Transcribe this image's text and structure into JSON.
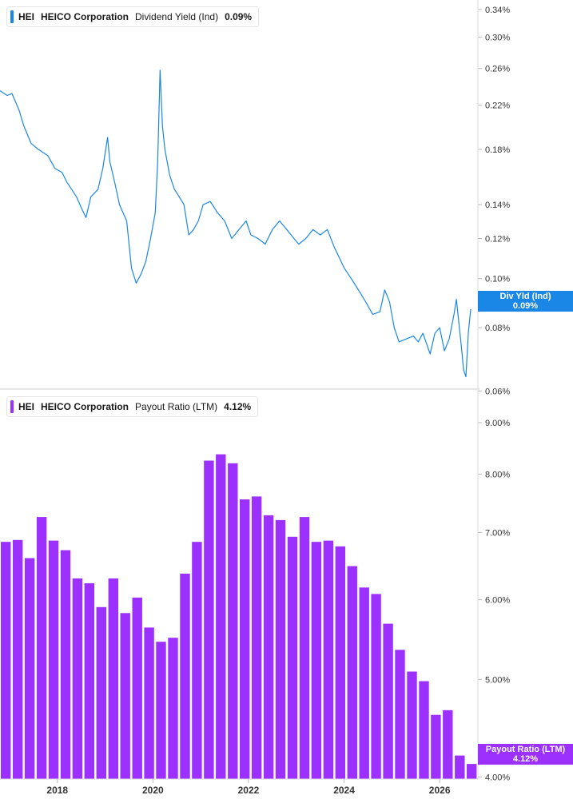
{
  "colors": {
    "div_yield": "#1a87e6",
    "payout": "#9b30ff",
    "axis_text": "#333333",
    "separator": "#cccccc"
  },
  "panels": {
    "top": {
      "legend": {
        "ticker": "HEI",
        "company": "HEICO Corporation",
        "metric": "Dividend Yield (Ind)",
        "value": "0.09%"
      },
      "tag": {
        "label": "Div Yld (Ind)",
        "value": "0.09%"
      }
    },
    "bottom": {
      "legend": {
        "ticker": "HEI",
        "company": "HEICO Corporation",
        "metric": "Payout Ratio (LTM)",
        "value": "4.12%"
      },
      "tag": {
        "label": "Payout Ratio (LTM)",
        "value": "4.12%"
      }
    }
  },
  "chart_data": [
    {
      "type": "line",
      "name": "Dividend Yield (Ind)",
      "y_scale": "log",
      "unit": "%",
      "xlim": [
        2016.8,
        2026.8
      ],
      "ylim": [
        0.0605,
        0.355
      ],
      "y_ticks": [
        "0.06%",
        "0.08%",
        "0.10%",
        "0.12%",
        "0.14%",
        "0.18%",
        "0.22%",
        "0.26%",
        "0.30%",
        "0.34%"
      ],
      "x": [
        2016.8,
        2016.95,
        2017.05,
        2017.2,
        2017.3,
        2017.45,
        2017.6,
        2017.8,
        2017.95,
        2018.1,
        2018.2,
        2018.3,
        2018.4,
        2018.5,
        2018.6,
        2018.7,
        2018.85,
        2018.95,
        2019.05,
        2019.1,
        2019.2,
        2019.3,
        2019.45,
        2019.55,
        2019.65,
        2019.75,
        2019.85,
        2019.95,
        2020.05,
        2020.1,
        2020.15,
        2020.2,
        2020.25,
        2020.35,
        2020.45,
        2020.55,
        2020.65,
        2020.75,
        2020.85,
        2020.95,
        2021.05,
        2021.2,
        2021.35,
        2021.5,
        2021.65,
        2021.8,
        2021.95,
        2022.05,
        2022.2,
        2022.35,
        2022.5,
        2022.65,
        2022.8,
        2022.95,
        2023.05,
        2023.2,
        2023.35,
        2023.5,
        2023.65,
        2023.8,
        2023.9,
        2024.0,
        2024.15,
        2024.3,
        2024.45,
        2024.6,
        2024.75,
        2024.85,
        2024.95,
        2025.05,
        2025.15,
        2025.3,
        2025.45,
        2025.55,
        2025.65,
        2025.8,
        2025.9,
        2026.0,
        2026.1,
        2026.2,
        2026.3,
        2026.35,
        2026.4,
        2026.45,
        2026.5,
        2026.55,
        2026.6,
        2026.65
      ],
      "y": [
        0.235,
        0.23,
        0.232,
        0.215,
        0.2,
        0.185,
        0.18,
        0.175,
        0.165,
        0.162,
        0.155,
        0.15,
        0.145,
        0.138,
        0.132,
        0.145,
        0.15,
        0.165,
        0.19,
        0.17,
        0.155,
        0.14,
        0.13,
        0.105,
        0.098,
        0.102,
        0.108,
        0.12,
        0.135,
        0.17,
        0.258,
        0.2,
        0.18,
        0.16,
        0.15,
        0.145,
        0.14,
        0.122,
        0.125,
        0.13,
        0.14,
        0.142,
        0.135,
        0.13,
        0.12,
        0.125,
        0.13,
        0.122,
        0.12,
        0.117,
        0.125,
        0.13,
        0.125,
        0.12,
        0.117,
        0.12,
        0.125,
        0.122,
        0.125,
        0.115,
        0.11,
        0.105,
        0.1,
        0.095,
        0.09,
        0.085,
        0.086,
        0.095,
        0.09,
        0.08,
        0.075,
        0.076,
        0.077,
        0.075,
        0.078,
        0.071,
        0.078,
        0.08,
        0.072,
        0.076,
        0.085,
        0.091,
        0.082,
        0.074,
        0.066,
        0.064,
        0.078,
        0.087
      ]
    },
    {
      "type": "bar",
      "name": "Payout Ratio (LTM)",
      "y_scale": "log",
      "unit": "%",
      "xlim": [
        2016.8,
        2026.8
      ],
      "ylim": [
        3.98,
        9.7
      ],
      "y_ticks": [
        "4.00%",
        "5.00%",
        "6.00%",
        "7.00%",
        "8.00%",
        "9.00%"
      ],
      "x_ticks": [
        "2018",
        "2020",
        "2022",
        "2024",
        "2026"
      ],
      "categories": [
        "2016-Q4",
        "2017-Q1",
        "2017-Q2",
        "2017-Q3",
        "2017-Q4",
        "2018-Q1",
        "2018-Q2",
        "2018-Q3",
        "2018-Q4",
        "2019-Q1",
        "2019-Q2",
        "2019-Q3",
        "2019-Q4",
        "2020-Q1",
        "2020-Q2",
        "2020-Q3",
        "2020-Q4",
        "2021-Q1",
        "2021-Q2",
        "2021-Q3",
        "2021-Q4",
        "2022-Q1",
        "2022-Q2",
        "2022-Q3",
        "2022-Q4",
        "2023-Q1",
        "2023-Q2",
        "2023-Q3",
        "2023-Q4",
        "2024-Q1",
        "2024-Q2",
        "2024-Q3",
        "2024-Q4",
        "2025-Q1",
        "2025-Q2",
        "2025-Q3",
        "2025-Q4",
        "2026-Q1",
        "2026-Q2",
        "2026-Q3"
      ],
      "values": [
        6.85,
        6.88,
        6.6,
        7.25,
        6.87,
        6.72,
        6.3,
        6.23,
        5.9,
        6.3,
        5.82,
        6.03,
        5.63,
        5.45,
        5.5,
        6.37,
        6.85,
        8.25,
        8.37,
        8.2,
        7.55,
        7.6,
        7.28,
        7.2,
        6.93,
        7.25,
        6.85,
        6.87,
        6.78,
        6.48,
        6.17,
        6.08,
        5.68,
        5.35,
        5.09,
        4.98,
        4.61,
        4.66,
        4.2,
        4.12
      ]
    }
  ]
}
